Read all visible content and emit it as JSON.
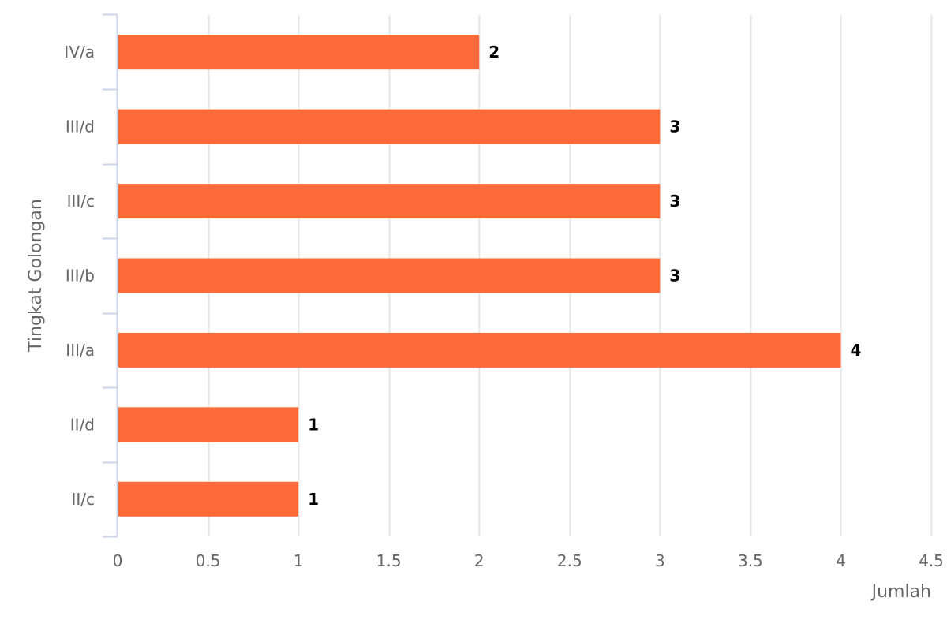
{
  "chart_data": {
    "type": "bar",
    "orientation": "horizontal",
    "categories": [
      "II/c",
      "II/d",
      "III/a",
      "III/b",
      "III/c",
      "III/d",
      "IV/a"
    ],
    "values": [
      1,
      1,
      4,
      3,
      3,
      3,
      2
    ],
    "xlabel": "Jumlah",
    "ylabel": "Tingkat Golongan",
    "xlim": [
      0,
      4.5
    ],
    "xticks": [
      "0",
      "0.5",
      "1",
      "1.5",
      "2",
      "2.5",
      "3",
      "3.5",
      "4",
      "4.5"
    ],
    "grid": true,
    "legend": "none",
    "bar_color": "#ff6a3a",
    "gridline_color": "#e6e6e6",
    "axis_color": "#ccd6eb"
  }
}
